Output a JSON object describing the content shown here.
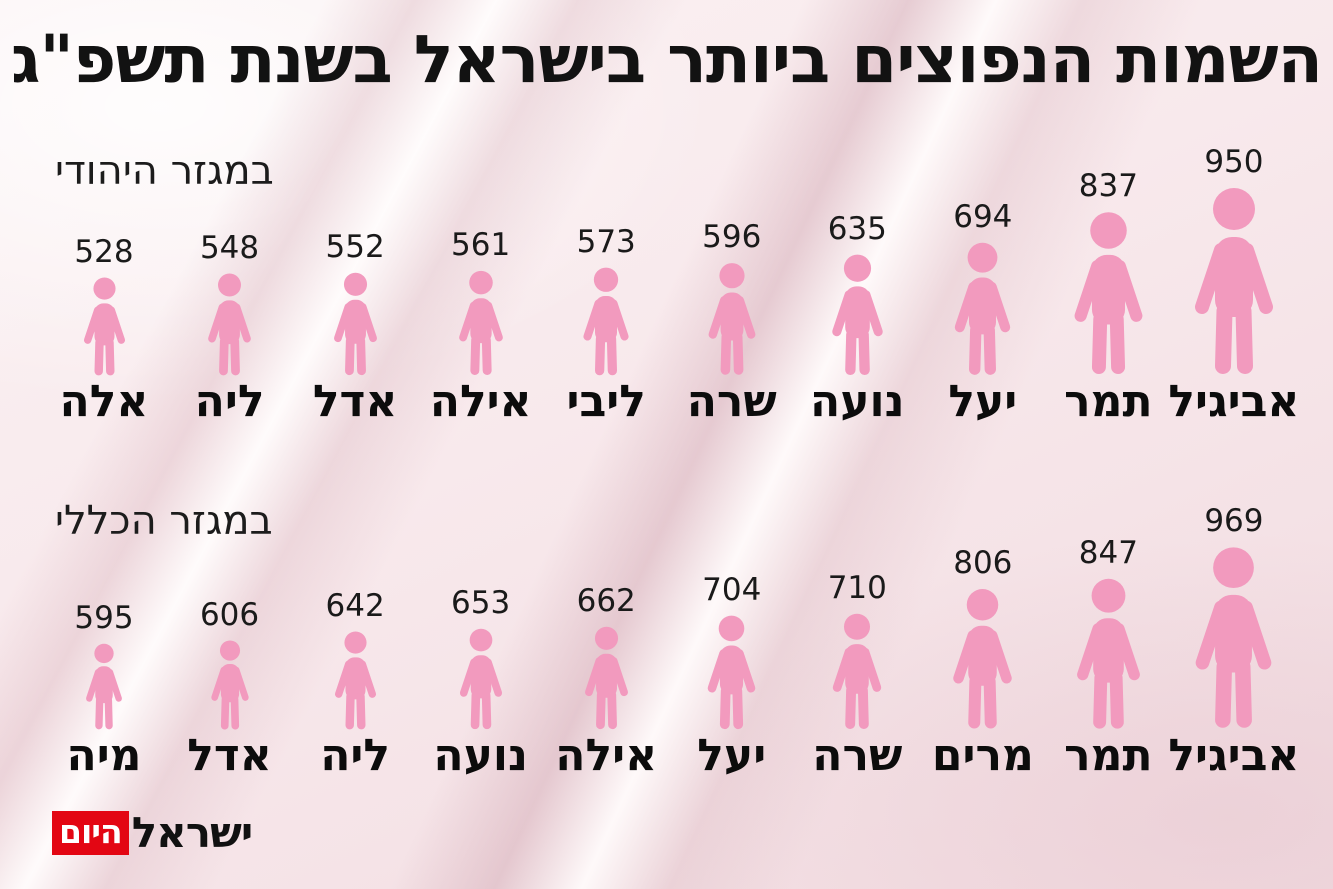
{
  "title": "השמות הנפוצים ביותר בישראל בשנת תשפ\"ג",
  "brand": {
    "logo_black": "ישראל",
    "logo_red": "היום"
  },
  "colors": {
    "figure_pink": "#F29ABE",
    "logo_red": "#E30613",
    "text_black": "#121212"
  },
  "icons": {
    "figure": "person-icon"
  },
  "chart_data": [
    {
      "type": "bar",
      "variant": "pictogram",
      "section_label": "במגזר היהודי",
      "order": "values ascend left-to-right; figure size proportional to value",
      "value_position": "above figure",
      "label_position": "below figure",
      "categories": [
        "אלה",
        "ליה",
        "אדל",
        "אילה",
        "ליבי",
        "שרה",
        "נועה",
        "יעל",
        "תמר",
        "אביגיל"
      ],
      "values": [
        528,
        548,
        552,
        561,
        573,
        596,
        635,
        694,
        837,
        950
      ]
    },
    {
      "type": "bar",
      "variant": "pictogram",
      "section_label": "במגזר הכללי",
      "order": "values ascend left-to-right; figure size proportional to value",
      "value_position": "above figure",
      "label_position": "below figure",
      "categories": [
        "מיה",
        "אדל",
        "ליה",
        "נועה",
        "אילה",
        "יעל",
        "שרה",
        "מרים",
        "תמר",
        "אביגיל"
      ],
      "values": [
        595,
        606,
        642,
        653,
        662,
        704,
        710,
        806,
        847,
        969
      ]
    }
  ]
}
